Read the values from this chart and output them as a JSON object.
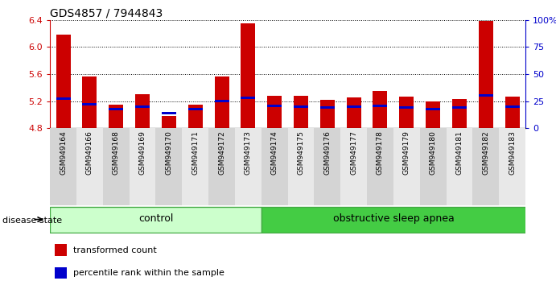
{
  "title": "GDS4857 / 7944843",
  "samples": [
    "GSM949164",
    "GSM949166",
    "GSM949168",
    "GSM949169",
    "GSM949170",
    "GSM949171",
    "GSM949172",
    "GSM949173",
    "GSM949174",
    "GSM949175",
    "GSM949176",
    "GSM949177",
    "GSM949178",
    "GSM949179",
    "GSM949180",
    "GSM949181",
    "GSM949182",
    "GSM949183"
  ],
  "transformed_count": [
    6.18,
    5.57,
    5.15,
    5.3,
    4.98,
    5.15,
    5.57,
    6.35,
    5.28,
    5.28,
    5.22,
    5.25,
    5.35,
    5.27,
    5.2,
    5.23,
    6.38,
    5.27
  ],
  "percentile_rank": [
    27,
    22,
    18,
    20,
    14,
    18,
    25,
    28,
    21,
    20,
    19,
    20,
    21,
    19,
    18,
    19,
    30,
    20
  ],
  "group_labels": [
    "control",
    "obstructive sleep apnea"
  ],
  "group_ctrl_indices": [
    0,
    7
  ],
  "group_osa_indices": [
    8,
    17
  ],
  "ylim": [
    4.8,
    6.4
  ],
  "y_ticks": [
    4.8,
    5.2,
    5.6,
    6.0,
    6.4
  ],
  "right_ylim": [
    0,
    100
  ],
  "right_yticks": [
    0,
    25,
    50,
    75,
    100
  ],
  "right_yticklabels": [
    "0",
    "25",
    "50",
    "75",
    "100%"
  ],
  "bar_color": "#cc0000",
  "percentile_color": "#0000cc",
  "bar_width": 0.55,
  "baseline": 4.8,
  "tick_label_color": "#cc0000",
  "right_tick_color": "#0000cc",
  "legend_items": [
    {
      "label": "transformed count",
      "color": "#cc0000"
    },
    {
      "label": "percentile rank within the sample",
      "color": "#0000cc"
    }
  ],
  "disease_state_label": "disease state"
}
